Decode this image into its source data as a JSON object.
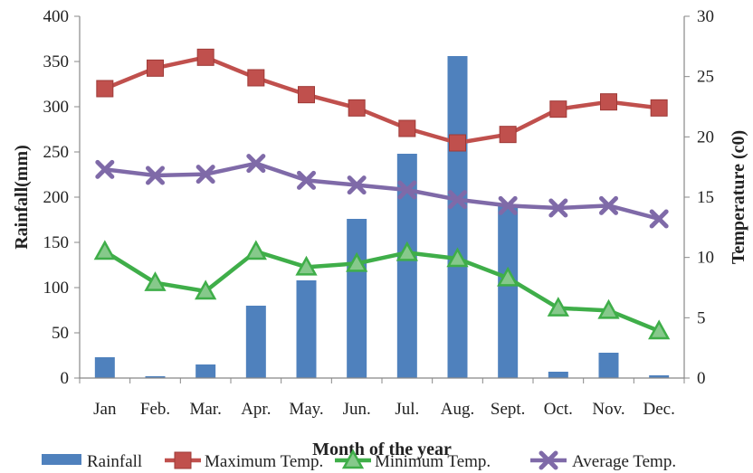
{
  "chart_data": {
    "type": "bar",
    "categories": [
      "Jan",
      "Feb.",
      "Mar.",
      "Apr.",
      "May.",
      "Jun.",
      "Jul.",
      "Aug.",
      "Sept.",
      "Oct.",
      "Nov.",
      "Dec."
    ],
    "xlabel": "Month of the year",
    "ylabel": "Rainfall(mm)",
    "y2label": "Temperature (c0)",
    "ylim": [
      0,
      400
    ],
    "y2lim": [
      0,
      30
    ],
    "yticks": [
      0,
      50,
      100,
      150,
      200,
      250,
      300,
      350,
      400
    ],
    "y2ticks": [
      0,
      5,
      10,
      15,
      20,
      25,
      30
    ],
    "grid": false,
    "legend_position": "bottom",
    "series": [
      {
        "name": "Rainfall",
        "kind": "bar",
        "axis": "left",
        "color": "#4f81bd",
        "marker": "none",
        "values": [
          23,
          2,
          15,
          80,
          108,
          176,
          248,
          356,
          190,
          7,
          28,
          3
        ]
      },
      {
        "name": "Maximum Temp.",
        "kind": "line",
        "axis": "right",
        "color": "#c0504d",
        "marker": "square",
        "values": [
          24.0,
          25.7,
          26.6,
          24.9,
          23.5,
          22.4,
          20.7,
          19.5,
          20.2,
          22.3,
          22.9,
          22.4
        ]
      },
      {
        "name": "Minimum Temp.",
        "kind": "line",
        "axis": "right",
        "color": "#3fae49",
        "marker": "triangle",
        "values": [
          10.5,
          7.9,
          7.2,
          10.5,
          9.2,
          9.5,
          10.4,
          9.9,
          8.3,
          5.8,
          5.6,
          3.9
        ]
      },
      {
        "name": "Average Temp.",
        "kind": "line",
        "axis": "right",
        "color": "#7f6aa8",
        "marker": "x",
        "values": [
          17.3,
          16.8,
          16.9,
          17.8,
          16.4,
          16.0,
          15.6,
          14.8,
          14.3,
          14.1,
          14.3,
          13.2
        ]
      }
    ]
  }
}
